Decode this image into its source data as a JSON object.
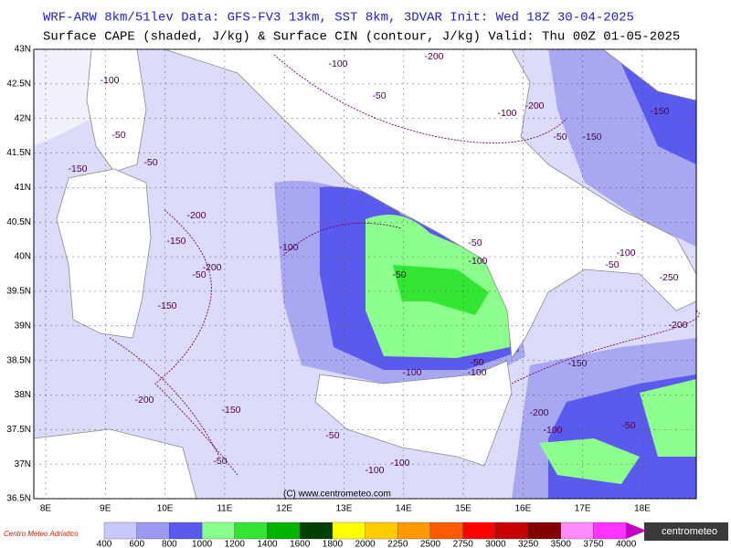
{
  "header": {
    "line1": "WRF-ARW 8km/51lev   Data: GFS-FV3 13km, SST 8km, 3DVAR   Init: Wed 18Z 30-04-2025",
    "line2": "Surface CAPE (shaded, J/kg) & Surface CIN (contour, J/kg)  Valid: Thu 00Z 01-05-2025"
  },
  "map": {
    "lat_labels": [
      "43N",
      "42.5N",
      "42N",
      "41.5N",
      "41N",
      "40.5N",
      "40N",
      "39.5N",
      "39N",
      "38.5N",
      "38N",
      "37.5N",
      "37N",
      "36.5N"
    ],
    "lon_labels": [
      "8E",
      "9E",
      "10E",
      "11E",
      "12E",
      "13E",
      "14E",
      "15E",
      "16E",
      "17E",
      "18E"
    ],
    "contour_labels": [
      "-100",
      "-200",
      "-50",
      "-100",
      "-50",
      "-150",
      "-50",
      "-200",
      "-150",
      "-50",
      "-200",
      "-150",
      "-100",
      "-50",
      "-50",
      "-100",
      "-100",
      "-200",
      "-50",
      "-150",
      "-150",
      "-100",
      "-50",
      "-250",
      "-200",
      "-150",
      "-100",
      "-50",
      "-100",
      "-200",
      "-100",
      "-50",
      "-200",
      "-150",
      "-50",
      "-100",
      "-100",
      "-50"
    ],
    "copyright": "(C) www.centrometeo.com"
  },
  "colorbar": {
    "labels": [
      "400",
      "600",
      "800",
      "1000",
      "1200",
      "1400",
      "1600",
      "1800",
      "2000",
      "2250",
      "2500",
      "2750",
      "3000",
      "3250",
      "3500",
      "3750",
      "4000"
    ],
    "colors": [
      "#c8c8ff",
      "#9a9af0",
      "#5a5aee",
      "#8cff8c",
      "#33e633",
      "#00b400",
      "#004000",
      "#ffff00",
      "#ffcc00",
      "#ff9900",
      "#ff5a00",
      "#ff0000",
      "#c80000",
      "#820000",
      "#ff8cff",
      "#ff33ff",
      "#c000c0"
    ]
  },
  "logos": {
    "left": "Centro Meteo Adriatico",
    "right": "centrometeo"
  }
}
